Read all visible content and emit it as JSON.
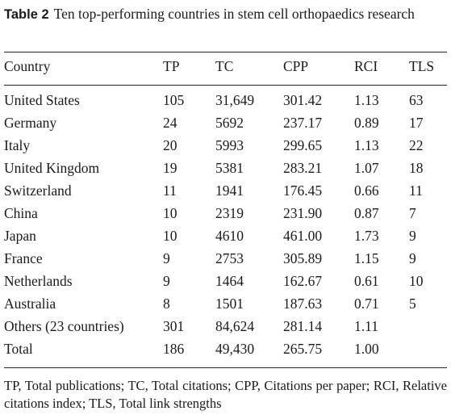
{
  "caption": {
    "label": "Table 2",
    "text": "Ten top-performing countries in stem cell orthopaedics research"
  },
  "columns": [
    "Country",
    "TP",
    "TC",
    "CPP",
    "RCI",
    "TLS"
  ],
  "rows": [
    [
      "United States",
      "105",
      "31,649",
      "301.42",
      "1.13",
      "63"
    ],
    [
      "Germany",
      "24",
      "5692",
      "237.17",
      "0.89",
      "17"
    ],
    [
      "Italy",
      "20",
      "5993",
      "299.65",
      "1.13",
      "22"
    ],
    [
      "United Kingdom",
      "19",
      "5381",
      "283.21",
      "1.07",
      "18"
    ],
    [
      "Switzerland",
      "11",
      "1941",
      "176.45",
      "0.66",
      "11"
    ],
    [
      "China",
      "10",
      "2319",
      "231.90",
      "0.87",
      "7"
    ],
    [
      "Japan",
      "10",
      "4610",
      "461.00",
      "1.73",
      "9"
    ],
    [
      "France",
      "9",
      "2753",
      "305.89",
      "1.15",
      "9"
    ],
    [
      "Netherlands",
      "9",
      "1464",
      "162.67",
      "0.61",
      "10"
    ],
    [
      "Australia",
      "8",
      "1501",
      "187.63",
      "0.71",
      "5"
    ],
    [
      "Others (23 countries)",
      "301",
      "84,624",
      "281.14",
      "1.11",
      ""
    ],
    [
      "Total",
      "186",
      "49,430",
      "265.75",
      "1.00",
      ""
    ]
  ],
  "footnote": "TP, Total publications; TC, Total citations; CPP, Citations per paper; RCI, Relative citations index; TLS, Total link strengths"
}
